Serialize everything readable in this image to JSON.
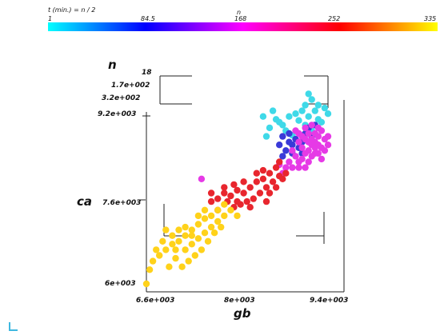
{
  "chart_data": {
    "type": "scatter",
    "dimensions": 3,
    "axes": {
      "x": {
        "label": "gb",
        "range": [
          6600,
          9400
        ],
        "ticks": [
          "6.6e+003",
          "8e+003",
          "9.4e+003"
        ]
      },
      "y": {
        "label": "ca",
        "range": [
          6000,
          9200
        ],
        "ticks": [
          "6e+003",
          "7.6e+003",
          "9.2e+003"
        ]
      },
      "z": {
        "label": "n",
        "range": [
          18,
          320
        ],
        "ticks": [
          "18",
          "1.7e+002",
          "3.2e+002"
        ]
      }
    },
    "colorbar": {
      "title": "n",
      "subtitle": "t (min.) = n / 2",
      "range": [
        1,
        335
      ],
      "ticks": [
        "1",
        "84.5",
        "168",
        "252",
        "335"
      ],
      "tick_values": [
        1,
        84.5,
        168,
        252,
        335
      ],
      "colors": [
        "#00ffff",
        "#0000ff",
        "#ff00ff",
        "#ff0000",
        "#ffff00"
      ],
      "placement": "top"
    },
    "marker_colors": {
      "cyan": "#3fd9e8",
      "blue": "#3a3ad8",
      "magenta": "#e63ae6",
      "red": "#e8262e",
      "yellow": "#ffd21a"
    },
    "series": [
      {
        "group": "cyan",
        "n_range": [
          18,
          84
        ],
        "points": [
          [
            8400,
            8950
          ],
          [
            8550,
            9050
          ],
          [
            8600,
            8900
          ],
          [
            8750,
            8700
          ],
          [
            8900,
            9000
          ],
          [
            9000,
            9050
          ],
          [
            9100,
            8950
          ],
          [
            8650,
            8850
          ],
          [
            8800,
            8950
          ],
          [
            8950,
            8880
          ],
          [
            9050,
            8800
          ],
          [
            9150,
            8700
          ],
          [
            9200,
            9050
          ],
          [
            9250,
            8900
          ],
          [
            8500,
            8750
          ],
          [
            8700,
            8800
          ],
          [
            8850,
            8620
          ],
          [
            9300,
            8850
          ],
          [
            9050,
            9150
          ],
          [
            9150,
            9250
          ],
          [
            9250,
            9150
          ],
          [
            9350,
            9100
          ],
          [
            9400,
            9000
          ],
          [
            9100,
            9350
          ],
          [
            8450,
            8600
          ]
        ]
      },
      {
        "group": "blue",
        "n_range": [
          85,
          130
        ],
        "points": [
          [
            8700,
            8600
          ],
          [
            8800,
            8500
          ],
          [
            8850,
            8450
          ],
          [
            8900,
            8550
          ],
          [
            8950,
            8400
          ],
          [
            9000,
            8500
          ],
          [
            8750,
            8350
          ],
          [
            8850,
            8300
          ],
          [
            9050,
            8650
          ],
          [
            8650,
            8450
          ],
          [
            9000,
            8300
          ],
          [
            8800,
            8650
          ],
          [
            9100,
            8750
          ],
          [
            9150,
            8600
          ],
          [
            8700,
            8250
          ],
          [
            9200,
            8800
          ]
        ]
      },
      {
        "group": "magenta",
        "n_range": [
          131,
          210
        ],
        "points": [
          [
            8900,
            8700
          ],
          [
            8950,
            8650
          ],
          [
            9000,
            8600
          ],
          [
            9050,
            8550
          ],
          [
            9100,
            8500
          ],
          [
            9150,
            8450
          ],
          [
            9200,
            8500
          ],
          [
            9250,
            8600
          ],
          [
            9300,
            8700
          ],
          [
            9350,
            8550
          ],
          [
            9000,
            8400
          ],
          [
            9100,
            8350
          ],
          [
            9200,
            8300
          ],
          [
            9300,
            8400
          ],
          [
            8900,
            8250
          ],
          [
            9000,
            8200
          ],
          [
            9100,
            8150
          ],
          [
            8800,
            8150
          ],
          [
            8850,
            8050
          ],
          [
            8950,
            8050
          ],
          [
            9150,
            8250
          ],
          [
            9250,
            8450
          ],
          [
            9400,
            8600
          ],
          [
            9050,
            8750
          ],
          [
            9150,
            8800
          ],
          [
            9250,
            8750
          ],
          [
            8750,
            8050
          ],
          [
            8650,
            8100
          ],
          [
            8700,
            7950
          ],
          [
            9050,
            8050
          ],
          [
            9200,
            8650
          ],
          [
            9350,
            8350
          ],
          [
            8950,
            8500
          ],
          [
            9100,
            8650
          ],
          [
            9200,
            8400
          ],
          [
            8850,
            8350
          ],
          [
            9300,
            8200
          ],
          [
            9400,
            8450
          ],
          [
            9050,
            8300
          ],
          [
            8950,
            8150
          ],
          [
            9150,
            8550
          ],
          [
            9250,
            8300
          ],
          [
            7450,
            7850
          ]
        ]
      },
      {
        "group": "red",
        "n_range": [
          211,
          275
        ],
        "points": [
          [
            8600,
            8050
          ],
          [
            8500,
            7950
          ],
          [
            8400,
            7850
          ],
          [
            8300,
            7800
          ],
          [
            8200,
            7700
          ],
          [
            8100,
            7600
          ],
          [
            8000,
            7650
          ],
          [
            7900,
            7550
          ],
          [
            7800,
            7600
          ],
          [
            7700,
            7500
          ],
          [
            8350,
            7600
          ],
          [
            8450,
            7700
          ],
          [
            8550,
            7800
          ],
          [
            8650,
            7900
          ],
          [
            8250,
            7500
          ],
          [
            8150,
            7450
          ],
          [
            8050,
            7400
          ],
          [
            7950,
            7350
          ],
          [
            7850,
            7450
          ],
          [
            7600,
            7450
          ],
          [
            8700,
            7850
          ],
          [
            8750,
            7950
          ],
          [
            8100,
            7800
          ],
          [
            8000,
            7450
          ],
          [
            7700,
            7300
          ],
          [
            8400,
            8000
          ],
          [
            7950,
            7750
          ],
          [
            8300,
            7950
          ],
          [
            8500,
            7600
          ],
          [
            7800,
            7700
          ],
          [
            8600,
            7700
          ],
          [
            8200,
            7350
          ],
          [
            7600,
            7600
          ],
          [
            8450,
            7450
          ],
          [
            8650,
            8150
          ]
        ]
      },
      {
        "group": "yellow",
        "n_range": [
          276,
          320
        ],
        "points": [
          [
            7800,
            7400
          ],
          [
            7700,
            7300
          ],
          [
            7600,
            7200
          ],
          [
            7500,
            7150
          ],
          [
            7400,
            7050
          ],
          [
            7300,
            6950
          ],
          [
            7200,
            6850
          ],
          [
            7100,
            6750
          ],
          [
            7000,
            6700
          ],
          [
            6900,
            6600
          ],
          [
            6800,
            6500
          ],
          [
            6700,
            6400
          ],
          [
            7500,
            6900
          ],
          [
            7400,
            6800
          ],
          [
            7300,
            6700
          ],
          [
            7200,
            6600
          ],
          [
            7600,
            7000
          ],
          [
            7700,
            7100
          ],
          [
            7800,
            7200
          ],
          [
            7900,
            7300
          ],
          [
            7100,
            6950
          ],
          [
            7000,
            6850
          ],
          [
            6900,
            6950
          ],
          [
            7350,
            6500
          ],
          [
            7250,
            6400
          ],
          [
            7050,
            6450
          ],
          [
            6950,
            6300
          ],
          [
            7150,
            6300
          ],
          [
            7450,
            6600
          ],
          [
            7550,
            6750
          ],
          [
            6850,
            6750
          ],
          [
            7650,
            6900
          ],
          [
            7750,
            7000
          ],
          [
            8000,
            7200
          ],
          [
            6650,
            6250
          ],
          [
            6600,
            6000
          ],
          [
            7200,
            7000
          ],
          [
            7400,
            7200
          ],
          [
            7050,
            6600
          ],
          [
            7300,
            6850
          ],
          [
            7500,
            7300
          ],
          [
            6750,
            6600
          ]
        ]
      }
    ]
  }
}
